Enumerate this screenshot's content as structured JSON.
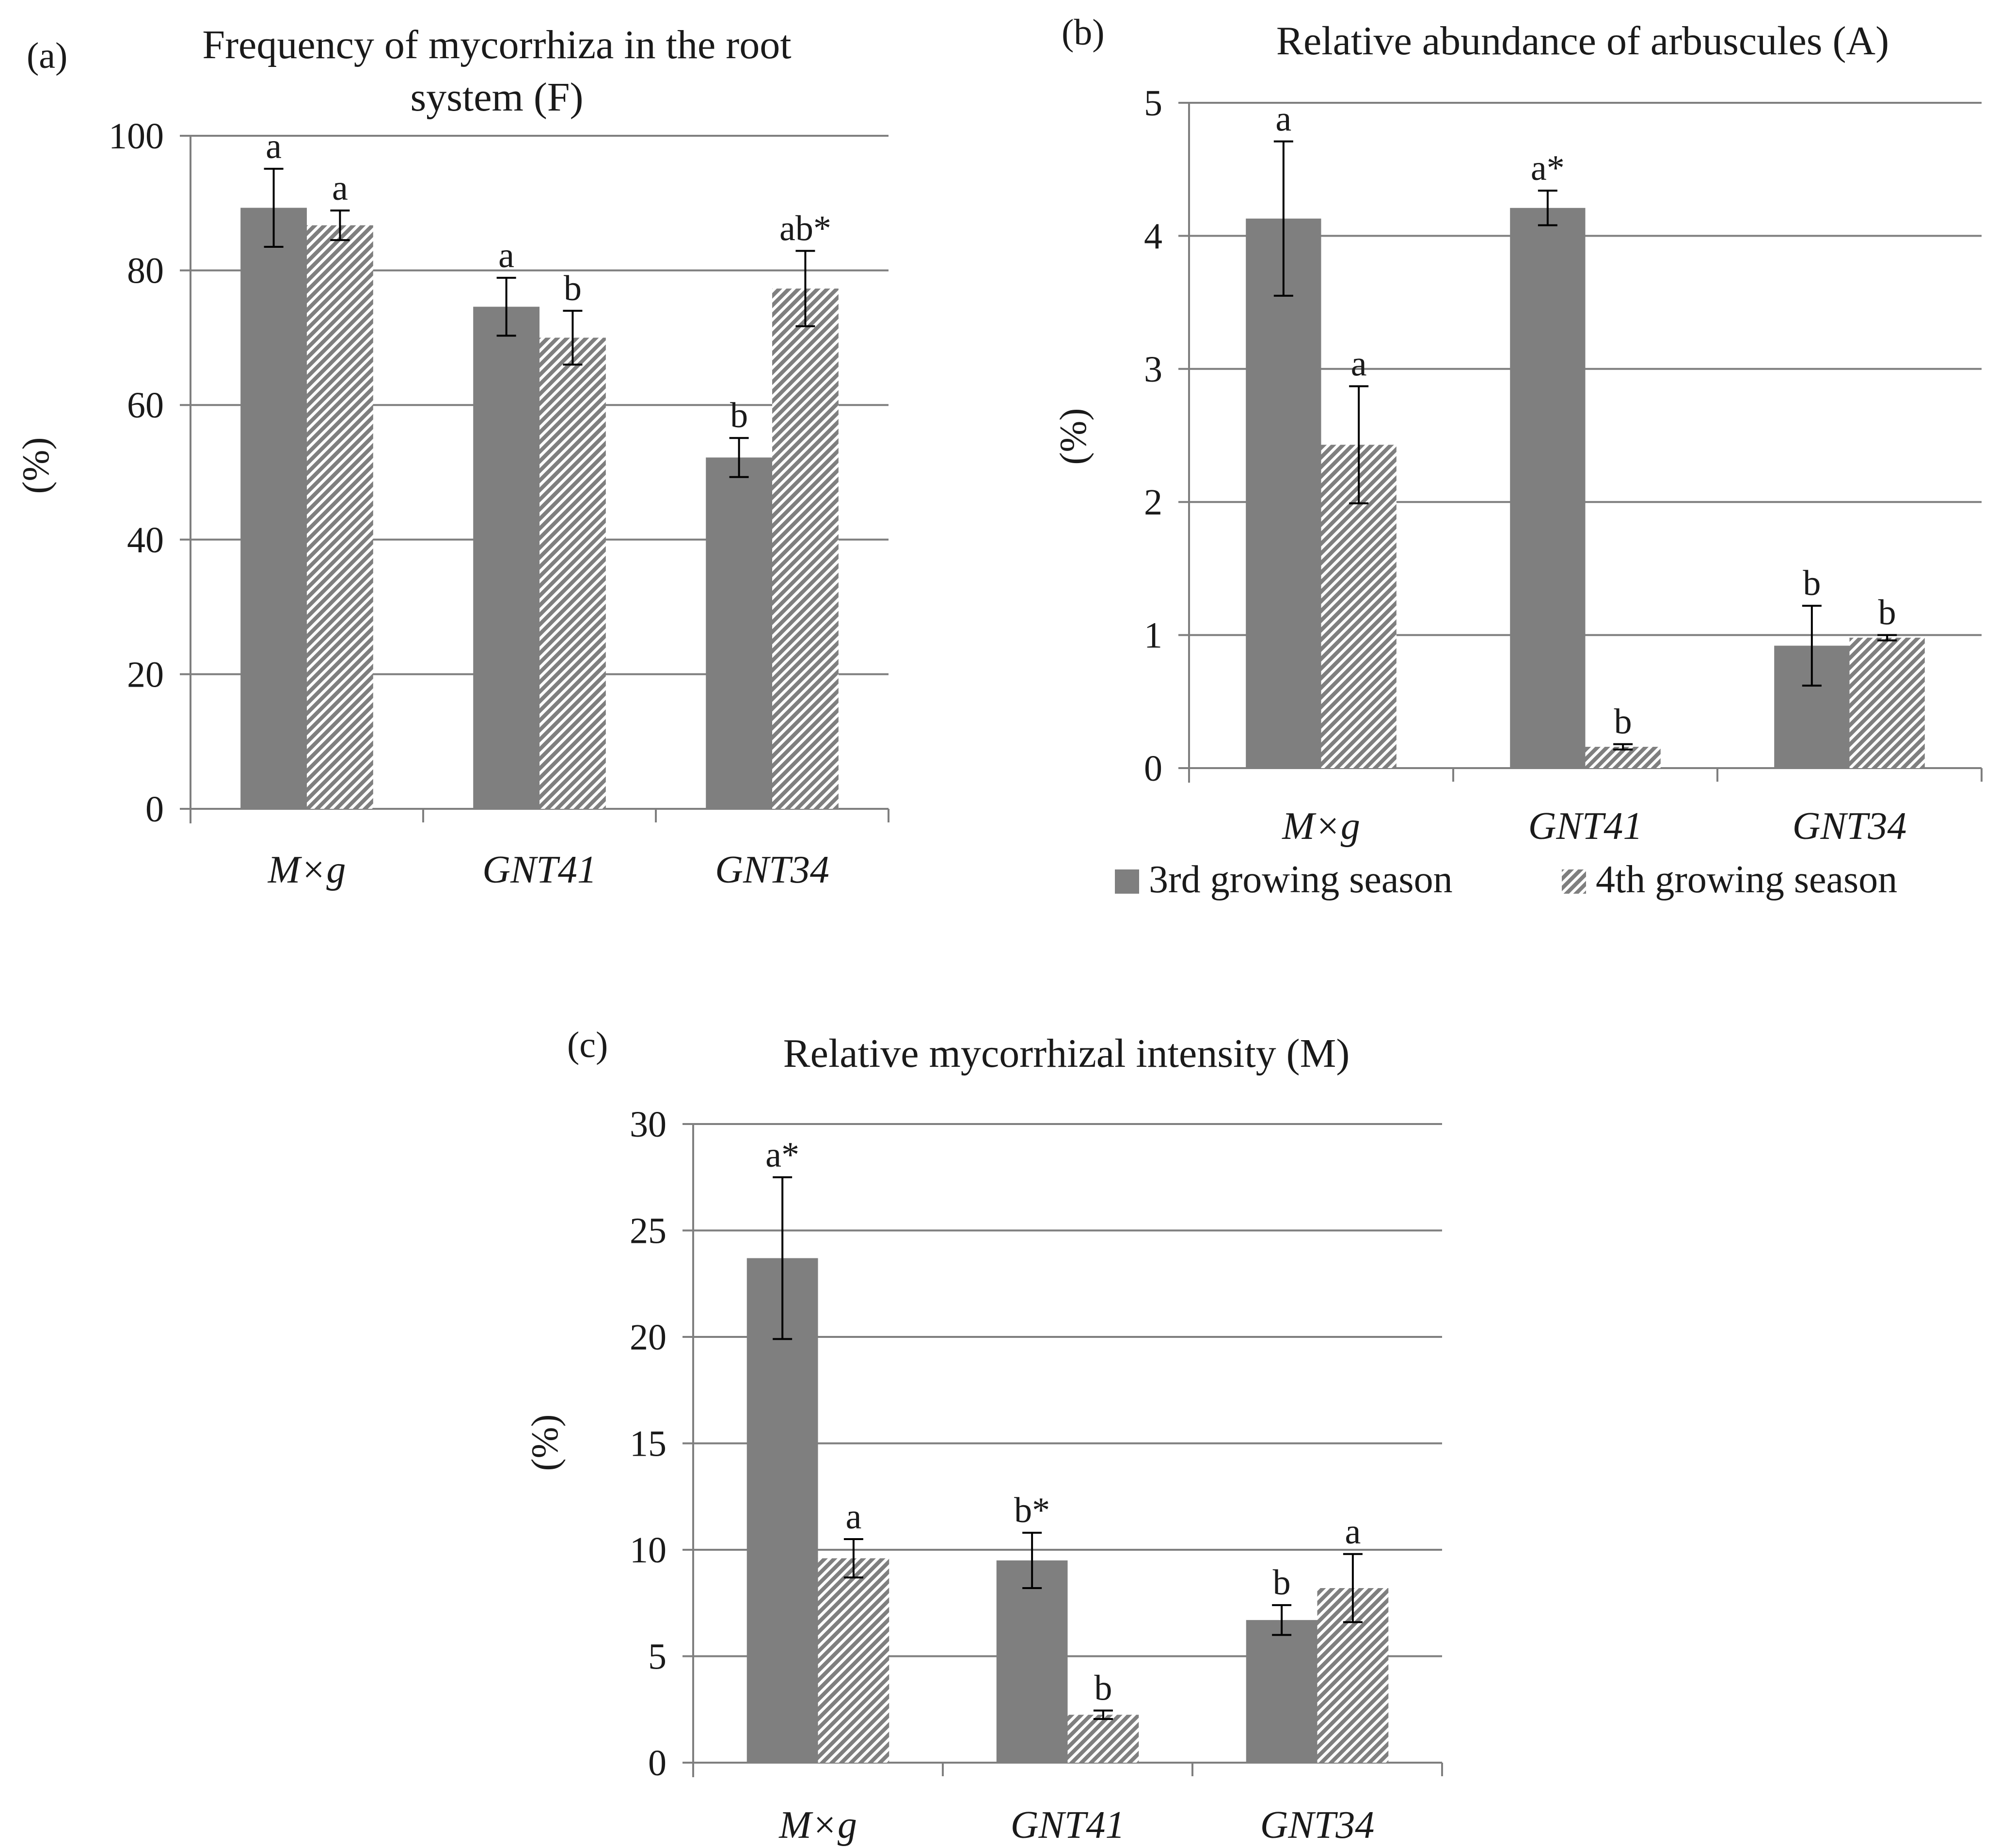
{
  "colors": {
    "series1": "#7f7f7f",
    "series2_base": "#ffffff",
    "series2_stripe": "#7f7f7f",
    "grid": "#7f7f7f",
    "text": "#1a1a1a"
  },
  "legend": {
    "entries": [
      "3rd growing season",
      "4th growing season"
    ]
  },
  "chart_data": [
    {
      "panel": "(a)",
      "type": "bar",
      "title": [
        "Frequency of mycorrhiza in the root",
        "system (F)"
      ],
      "ylabel": "(%)",
      "ylim": [
        0,
        100
      ],
      "yticks": [
        0,
        20,
        40,
        60,
        80,
        100
      ],
      "grid": true,
      "categories": [
        "M×g",
        "GNT41",
        "GNT34"
      ],
      "series": [
        {
          "name": "3rd growing season",
          "values": [
            89.3,
            74.6,
            52.2
          ],
          "errors": [
            5.8,
            4.3,
            2.9
          ],
          "labels": [
            "a",
            "a",
            "b"
          ]
        },
        {
          "name": "4th growing season",
          "values": [
            86.7,
            70.0,
            77.3
          ],
          "errors": [
            2.2,
            4.0,
            5.6
          ],
          "labels": [
            "a",
            "b",
            "ab*"
          ]
        }
      ]
    },
    {
      "panel": "(b)",
      "type": "bar",
      "title": [
        "Relative abundance of arbuscules (A)"
      ],
      "ylabel": "(%)",
      "ylim": [
        0,
        5
      ],
      "yticks": [
        0,
        1,
        2,
        3,
        4,
        5
      ],
      "grid": true,
      "categories": [
        "M×g",
        "GNT41",
        "GNT34"
      ],
      "legend": "bottom",
      "series": [
        {
          "name": "3rd growing season",
          "values": [
            4.13,
            4.21,
            0.92
          ],
          "errors": [
            0.58,
            0.13,
            0.3
          ],
          "labels": [
            "a",
            "a*",
            "b"
          ]
        },
        {
          "name": "4th growing season",
          "values": [
            2.43,
            0.16,
            0.98
          ],
          "errors": [
            0.44,
            0.02,
            0.02
          ],
          "labels": [
            "a",
            "b",
            "b"
          ]
        }
      ]
    },
    {
      "panel": "(c)",
      "type": "bar",
      "title": [
        "Relative mycorrhizal intensity (M)"
      ],
      "ylabel": "(%)",
      "ylim": [
        0,
        30
      ],
      "yticks": [
        0,
        5,
        10,
        15,
        20,
        25,
        30
      ],
      "grid": true,
      "categories": [
        "M×g",
        "GNT41",
        "GNT34"
      ],
      "series": [
        {
          "name": "3rd growing season",
          "values": [
            23.7,
            9.5,
            6.7
          ],
          "errors": [
            3.8,
            1.3,
            0.7
          ],
          "labels": [
            "a*",
            "b*",
            "b"
          ]
        },
        {
          "name": "4th growing season",
          "values": [
            9.6,
            2.25,
            8.2
          ],
          "errors": [
            0.9,
            0.2,
            1.6
          ],
          "labels": [
            "a",
            "b",
            "a"
          ]
        }
      ]
    }
  ]
}
